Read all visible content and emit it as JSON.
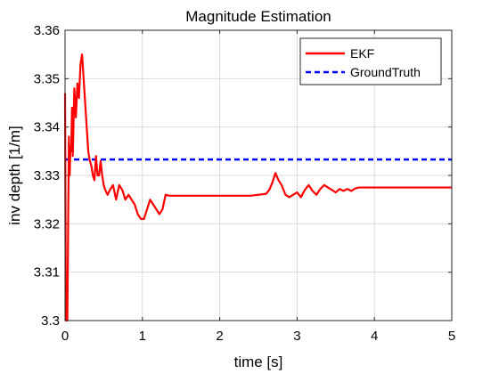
{
  "chart_data": {
    "type": "line",
    "title": "Magnitude Estimation",
    "xlabel": "time [s]",
    "ylabel": "inv depth [1/m]",
    "xlim": [
      0,
      5
    ],
    "ylim": [
      3.3,
      3.36
    ],
    "xticks": [
      0,
      1,
      2,
      3,
      4,
      5
    ],
    "xtick_labels": [
      "0",
      "1",
      "2",
      "3",
      "4",
      "5"
    ],
    "yticks": [
      3.3,
      3.31,
      3.32,
      3.33,
      3.34,
      3.35,
      3.36
    ],
    "ytick_labels": [
      "3.3",
      "3.31",
      "3.32",
      "3.33",
      "3.34",
      "3.35",
      "3.36"
    ],
    "grid": true,
    "legend_position": "top-right",
    "series": [
      {
        "name": "EKF",
        "color": "#ff0000",
        "style": "solid",
        "x": [
          0,
          0.01,
          0.02,
          0.03,
          0.04,
          0.05,
          0.06,
          0.07,
          0.08,
          0.09,
          0.1,
          0.12,
          0.14,
          0.16,
          0.18,
          0.2,
          0.22,
          0.24,
          0.26,
          0.28,
          0.3,
          0.32,
          0.34,
          0.36,
          0.38,
          0.4,
          0.42,
          0.44,
          0.46,
          0.48,
          0.5,
          0.52,
          0.55,
          0.58,
          0.62,
          0.66,
          0.7,
          0.74,
          0.78,
          0.82,
          0.86,
          0.9,
          0.94,
          0.98,
          1.02,
          1.06,
          1.1,
          1.14,
          1.18,
          1.22,
          1.26,
          1.3,
          1.35,
          1.5,
          1.8,
          2.1,
          2.4,
          2.6,
          2.64,
          2.68,
          2.72,
          2.76,
          2.8,
          2.85,
          2.9,
          2.95,
          3.0,
          3.05,
          3.1,
          3.15,
          3.2,
          3.25,
          3.3,
          3.35,
          3.4,
          3.45,
          3.5,
          3.55,
          3.6,
          3.65,
          3.7,
          3.75,
          3.8,
          3.85,
          3.9,
          4.0,
          4.2,
          4.5,
          4.8,
          5.0
        ],
        "y": [
          3.347,
          3.3,
          3.305,
          3.3,
          3.32,
          3.338,
          3.33,
          3.336,
          3.335,
          3.344,
          3.334,
          3.348,
          3.342,
          3.349,
          3.346,
          3.353,
          3.355,
          3.35,
          3.345,
          3.34,
          3.335,
          3.333,
          3.332,
          3.33,
          3.329,
          3.334,
          3.33,
          3.33,
          3.333,
          3.33,
          3.328,
          3.327,
          3.326,
          3.327,
          3.328,
          3.325,
          3.328,
          3.327,
          3.325,
          3.326,
          3.325,
          3.324,
          3.322,
          3.321,
          3.321,
          3.323,
          3.325,
          3.324,
          3.323,
          3.322,
          3.323,
          3.326,
          3.3258,
          3.3258,
          3.3258,
          3.3258,
          3.3258,
          3.3262,
          3.327,
          3.3285,
          3.3305,
          3.329,
          3.328,
          3.326,
          3.3255,
          3.326,
          3.3265,
          3.3255,
          3.327,
          3.328,
          3.3268,
          3.326,
          3.3272,
          3.328,
          3.3275,
          3.327,
          3.3265,
          3.3272,
          3.3268,
          3.3272,
          3.3268,
          3.3273,
          3.3275,
          3.3275,
          3.3275,
          3.3275,
          3.3275,
          3.3275,
          3.3275,
          3.3275
        ]
      },
      {
        "name": "GroundTruth",
        "color": "#0000ff",
        "style": "dashed",
        "x": [
          0,
          5
        ],
        "y": [
          3.3333,
          3.3333
        ]
      }
    ]
  }
}
